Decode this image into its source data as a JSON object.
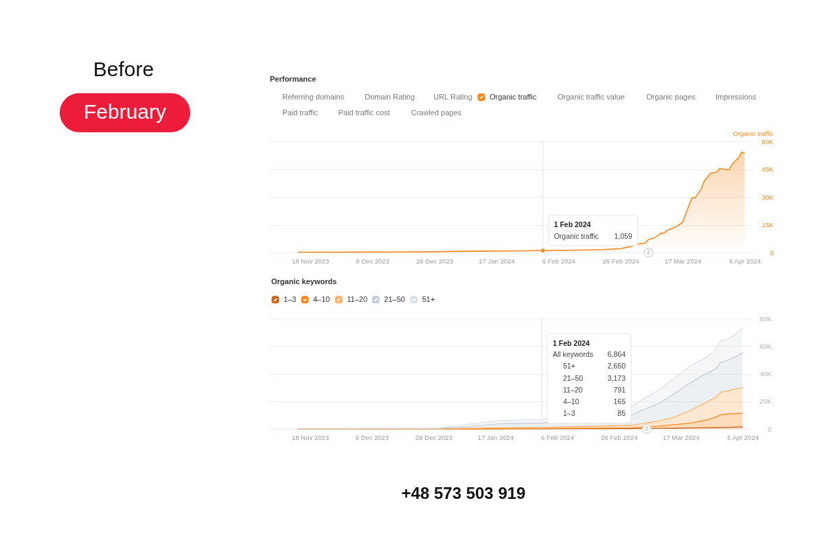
{
  "chart_data": [
    {
      "type": "other",
      "title": "Before",
      "subtitle": "February",
      "annotations": [
        "+48 573 503 919"
      ]
    },
    {
      "type": "area",
      "title": "Performance",
      "ylabel": "Organic traffic",
      "x": [
        "2023-11-14",
        "2023-11-28",
        "2023-12-12",
        "2023-12-28",
        "2024-01-03",
        "2024-01-15",
        "2024-01-26",
        "2024-02-01",
        "2024-02-10",
        "2024-02-20",
        "2024-02-26",
        "2024-02-29",
        "2024-03-02",
        "2024-03-05",
        "2024-03-06",
        "2024-03-08",
        "2024-03-10",
        "2024-03-11",
        "2024-03-12",
        "2024-03-13",
        "2024-03-15",
        "2024-03-17",
        "2024-03-20",
        "2024-03-21",
        "2024-03-23",
        "2024-03-24",
        "2024-03-26",
        "2024-03-28",
        "2024-03-29",
        "2024-03-30",
        "2024-04-01",
        "2024-04-02",
        "2024-04-04",
        "2024-04-05",
        "2024-04-06"
      ],
      "series": [
        {
          "name": "Organic traffic",
          "color": "#f7891f",
          "values": [
            200,
            200,
            300,
            400,
            600,
            800,
            900,
            1059,
            1200,
            1600,
            2100,
            3100,
            4300,
            5200,
            7000,
            7900,
            10400,
            10400,
            12000,
            12600,
            14000,
            16300,
            29500,
            29500,
            34200,
            38700,
            42800,
            43400,
            45500,
            45000,
            44700,
            47800,
            51100,
            54200,
            53700
          ]
        }
      ],
      "xlim": [
        "2023-11-05",
        "2024-04-09"
      ],
      "xticks": [
        {
          "value": "2023-11-18",
          "label": "18 Nov 2023"
        },
        {
          "value": "2023-12-08",
          "label": "8 Dec 2023"
        },
        {
          "value": "2023-12-28",
          "label": "28 Dec 2023"
        },
        {
          "value": "2024-01-17",
          "label": "17 Jan 2024"
        },
        {
          "value": "2024-02-06",
          "label": "6 Feb 2024"
        },
        {
          "value": "2024-02-26",
          "label": "26 Feb 2024"
        },
        {
          "value": "2024-03-17",
          "label": "17 Mar 2024"
        },
        {
          "value": "2024-04-06",
          "label": "6 Apr 2024"
        }
      ],
      "ylim": [
        0,
        60000
      ],
      "yticks": [
        0,
        {
          "value": 15000,
          "label": "15K"
        },
        {
          "value": 30000,
          "label": "30K"
        },
        {
          "value": 45000,
          "label": "45K"
        },
        {
          "value": 60000,
          "label": "60K"
        }
      ],
      "grid": "y",
      "legend": "top left",
      "ref_lines": [
        {
          "axis": "x",
          "value": "2024-02-01",
          "label": "1 Feb 2024",
          "color": "#e2e2e2"
        }
      ],
      "annotations": [
        "Referring domains",
        "Domain Rating",
        "URL Rating",
        "Organic traffic value",
        "Organic pages",
        "Impressions",
        "Paid traffic",
        "Paid traffic cost",
        "Crawled pages",
        {
          "text": "2",
          "x": "2024-03-06",
          "y": 0
        },
        "Organic traffic",
        "1,059"
      ]
    },
    {
      "type": "area",
      "stacked": true,
      "title": "Organic keywords",
      "x": [
        "2023-11-14",
        "2023-12-15",
        "2023-12-29",
        "2024-01-08",
        "2024-01-18",
        "2024-01-26",
        "2024-02-01",
        "2024-03-01",
        "2024-03-10",
        "2024-03-15",
        "2024-03-20",
        "2024-03-25",
        "2024-03-28",
        "2024-03-30",
        "2024-04-01",
        "2024-04-03",
        "2024-04-06"
      ],
      "series": [
        {
          "name": "1–3",
          "color": "#c8691c",
          "values": [
            0,
            0,
            0,
            0,
            100,
            100,
            85,
            200,
            400,
            500,
            700,
            900,
            1000,
            1100,
            1200,
            1300,
            1500
          ]
        },
        {
          "name": "4–10",
          "color": "#f7891f",
          "values": [
            0,
            0,
            0,
            100,
            100,
            200,
            165,
            600,
            1600,
            2500,
            3500,
            5400,
            7300,
            9200,
            9600,
            9700,
            9800
          ]
        },
        {
          "name": "11–20",
          "color": "#fdb46a",
          "values": [
            100,
            100,
            100,
            300,
            600,
            800,
            791,
            1800,
            3800,
            5600,
            9100,
            12800,
            14100,
            16300,
            16600,
            17600,
            18600
          ]
        },
        {
          "name": "21–50",
          "color": "#c5ced8",
          "values": [
            100,
            200,
            200,
            1200,
            2900,
            3000,
            3173,
            7500,
            12800,
            17100,
            19900,
            20800,
            20800,
            21600,
            22400,
            22900,
            25200
          ]
        },
        {
          "name": "51+",
          "color": "#dde2e9",
          "values": [
            200,
            200,
            300,
            1700,
            2200,
            2500,
            2650,
            6000,
            10000,
            10800,
            12500,
            11600,
            13300,
            15800,
            15000,
            15800,
            17700
          ]
        }
      ],
      "xlim": [
        "2023-11-05",
        "2024-04-09"
      ],
      "xticks": [
        {
          "value": "2023-11-18",
          "label": "18 Nov 2023"
        },
        {
          "value": "2023-12-08",
          "label": "8 Dec 2023"
        },
        {
          "value": "2023-12-28",
          "label": "28 Dec 2023"
        },
        {
          "value": "2024-01-17",
          "label": "17 Jan 2024"
        },
        {
          "value": "2024-02-06",
          "label": "6 Feb 2024"
        },
        {
          "value": "2024-02-26",
          "label": "26 Feb 2024"
        },
        {
          "value": "2024-03-17",
          "label": "17 Mar 2024"
        },
        {
          "value": "2024-04-06",
          "label": "6 Apr 2024"
        }
      ],
      "ylim": [
        0,
        80000
      ],
      "yticks": [
        0,
        {
          "value": 20000,
          "label": "20K"
        },
        {
          "value": 40000,
          "label": "40K"
        },
        {
          "value": 60000,
          "label": "60K"
        },
        {
          "value": 80000,
          "label": "80K"
        }
      ],
      "grid": "y",
      "legend": "top left",
      "ref_lines": [
        {
          "axis": "x",
          "value": "2024-02-01",
          "label": "1 Feb 2024",
          "color": "#e2e2e2"
        }
      ],
      "annotations": [
        {
          "text": "2",
          "x": "2024-03-06",
          "y": 0
        },
        "All keywords",
        "6,864",
        "51+",
        "2,650",
        "21–50",
        "3,173",
        "11–20",
        "791",
        "4–10",
        "165",
        "1–3",
        "85"
      ]
    }
  ]
}
